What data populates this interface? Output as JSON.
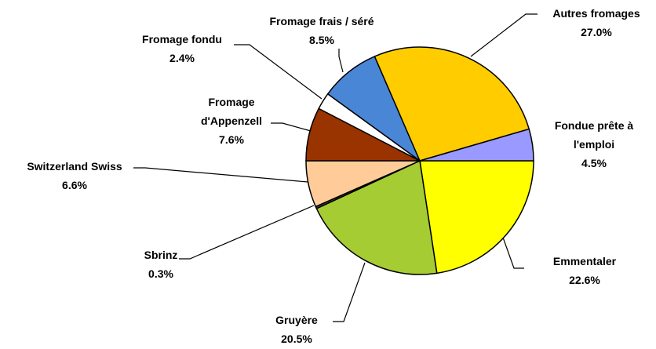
{
  "chart_data": {
    "type": "pie",
    "categories": [
      "Emmentaler",
      "Gruyère",
      "Sbrinz",
      "Switzerland Swiss",
      "Fromage d'Appenzell",
      "Fromage fondu",
      "Fromage frais / séré",
      "Autres fromages",
      "Fondue prête à l'emploi"
    ],
    "values": [
      22.6,
      20.5,
      0.3,
      6.6,
      7.6,
      2.4,
      8.5,
      27,
      4.5
    ],
    "value_labels": [
      "22.6%",
      "20.5%",
      "0.3%",
      "6.6%",
      "7.6%",
      "2.4%",
      "8.5%",
      "27.0%",
      "4.5%"
    ],
    "colors": [
      "#ffff00",
      "#a6cc33",
      "#404040",
      "#ffcc99",
      "#993300",
      "#ffffff",
      "#4a86d6",
      "#ffcc00",
      "#9999ff"
    ]
  }
}
